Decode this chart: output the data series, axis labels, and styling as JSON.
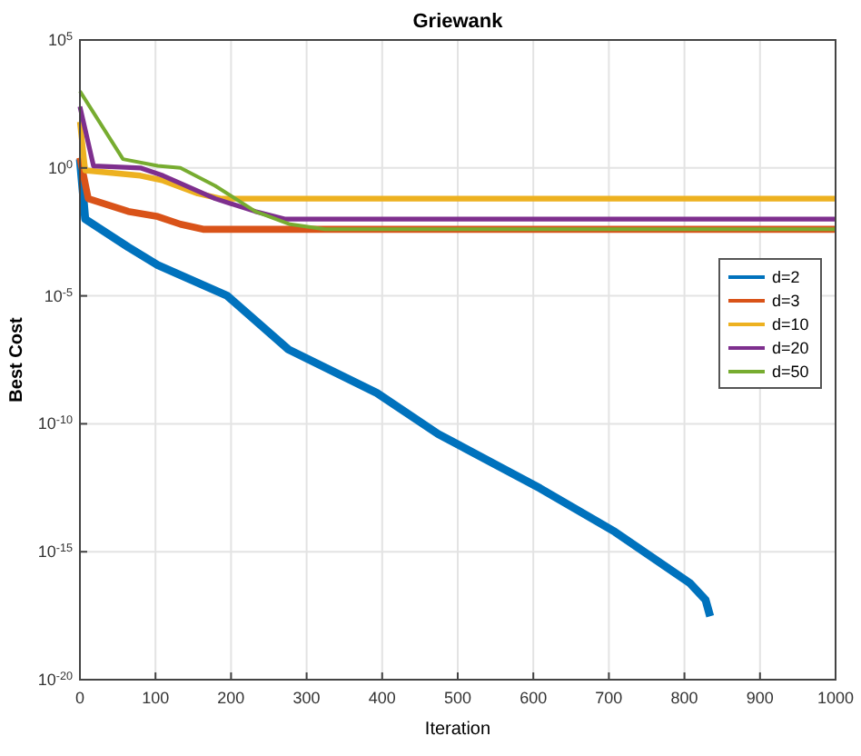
{
  "chart_data": {
    "type": "line",
    "title": "Griewank",
    "xlabel": "Iteration",
    "ylabel": "Best Cost",
    "log": "y",
    "grid": true,
    "legend": "right",
    "line_style": "solid",
    "marker": "none",
    "xlim": [
      0,
      1000
    ],
    "xticks": [
      0,
      100,
      200,
      300,
      400,
      500,
      600,
      700,
      800,
      900,
      1000
    ],
    "ylim": [
      1e-20,
      100000.0
    ],
    "yticks": [
      {
        "value": 1e-20,
        "label": "10$^{-20}$"
      },
      {
        "value": 1e-15,
        "label": "10$^{-15}$"
      },
      {
        "value": 1e-10,
        "label": "10$^{-10}$"
      },
      {
        "value": 1e-05,
        "label": "10$^{-5}$"
      },
      {
        "value": 1,
        "label": "10$^{0}$"
      },
      {
        "value": 100000.0,
        "label": "10$^{5}$"
      }
    ],
    "series": [
      {
        "name": "d=2",
        "color": "#0072bd",
        "x": [
          0,
          7,
          64,
          103,
          195,
          276,
          393,
          474,
          609,
          708,
          807,
          828,
          834
        ],
        "values": [
          2.2,
          0.01,
          0.0008,
          0.00016,
          1e-05,
          8e-08,
          1.6e-09,
          4e-11,
          3e-13,
          6e-15,
          6e-17,
          1.3e-17,
          3e-18
        ]
      },
      {
        "name": "d=3",
        "color": "#d95319",
        "x": [
          0,
          11,
          64,
          103,
          133,
          163,
          1000
        ],
        "values": [
          2.5,
          0.063,
          0.02,
          0.0126,
          0.0063,
          0.004,
          0.004
        ]
      },
      {
        "name": "d=10",
        "color": "#edb120",
        "x": [
          0,
          7,
          80,
          110,
          156,
          186,
          1000
        ],
        "values": [
          63,
          0.8,
          0.5,
          0.32,
          0.1,
          0.063,
          0.063
        ]
      },
      {
        "name": "d=20",
        "color": "#7e2f8e",
        "x": [
          0,
          18,
          80,
          110,
          179,
          232,
          271,
          1000
        ],
        "values": [
          250,
          1.2,
          1,
          0.5,
          0.063,
          0.02,
          0.01,
          0.01
        ]
      },
      {
        "name": "d=50",
        "color": "#77ac30",
        "x": [
          0,
          57,
          103,
          133,
          179,
          232,
          278,
          324,
          1000
        ],
        "values": [
          1000,
          2.2,
          1.2,
          1,
          0.2,
          0.02,
          0.0063,
          0.004,
          0.004
        ]
      }
    ]
  }
}
